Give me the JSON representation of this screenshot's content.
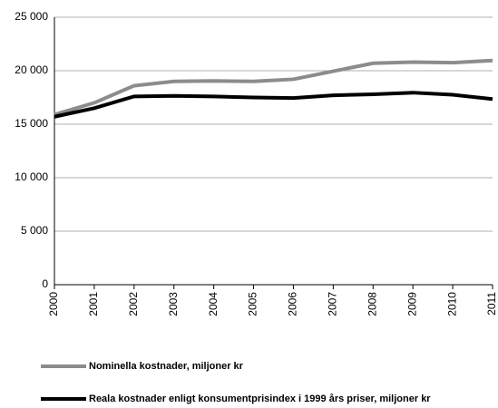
{
  "chart_data": {
    "type": "line",
    "x": [
      2000,
      2001,
      2002,
      2003,
      2004,
      2005,
      2006,
      2007,
      2008,
      2009,
      2010,
      2011
    ],
    "xlim": [
      2000,
      2011
    ],
    "series": [
      {
        "name": "Nominella kostnader, miljoner kr",
        "color": "#8c8c8c",
        "values": [
          15900,
          17000,
          18600,
          19000,
          19050,
          19000,
          19200,
          19950,
          20700,
          20800,
          20750,
          20950
        ]
      },
      {
        "name": "Reala kostnader enligt konsumentprisindex i 1999 års priser, miljoner kr",
        "color": "#000000",
        "values": [
          15700,
          16500,
          17600,
          17650,
          17600,
          17500,
          17450,
          17700,
          17800,
          17950,
          17750,
          17350
        ]
      }
    ],
    "ylim": [
      0,
      25000
    ],
    "yticks": [
      0,
      {
        "value": 5000,
        "label": "5 000"
      },
      {
        "value": 10000,
        "label": "10 000"
      },
      {
        "value": 15000,
        "label": "15 000"
      },
      {
        "value": 20000,
        "label": "20 000"
      },
      {
        "value": 25000,
        "label": "25 000"
      }
    ],
    "grid": true
  }
}
